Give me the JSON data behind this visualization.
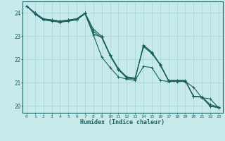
{
  "xlabel": "Humidex (Indice chaleur)",
  "background_color": "#c8eaea",
  "grid_color": "#a8d8d8",
  "line_color": "#1a6060",
  "spine_color": "#1a6060",
  "xlim": [
    -0.5,
    23.5
  ],
  "ylim": [
    19.7,
    24.5
  ],
  "yticks": [
    20,
    21,
    22,
    23,
    24
  ],
  "xticks": [
    0,
    1,
    2,
    3,
    4,
    5,
    6,
    7,
    8,
    9,
    10,
    11,
    12,
    13,
    14,
    15,
    16,
    17,
    18,
    19,
    20,
    21,
    22,
    23
  ],
  "series": [
    [
      24.3,
      24.0,
      23.75,
      23.7,
      23.65,
      23.7,
      23.75,
      24.0,
      23.3,
      23.0,
      22.2,
      21.6,
      21.25,
      21.2,
      22.55,
      22.25,
      21.8,
      21.1,
      21.1,
      21.1,
      20.4,
      20.4,
      20.05,
      19.95
    ],
    [
      24.3,
      24.0,
      23.72,
      23.67,
      23.62,
      23.67,
      23.72,
      23.97,
      23.1,
      22.95,
      22.15,
      21.55,
      21.2,
      21.15,
      22.62,
      22.32,
      21.78,
      21.08,
      21.08,
      21.08,
      20.4,
      20.37,
      19.98,
      19.92
    ],
    [
      24.3,
      23.95,
      23.7,
      23.65,
      23.6,
      23.65,
      23.7,
      23.97,
      23.05,
      22.1,
      21.65,
      21.25,
      21.15,
      21.1,
      21.7,
      21.65,
      21.1,
      21.05,
      21.05,
      21.05,
      20.8,
      20.35,
      20.3,
      19.92
    ],
    [
      24.3,
      24.0,
      23.75,
      23.7,
      23.65,
      23.7,
      23.75,
      24.0,
      23.2,
      22.95,
      22.18,
      21.57,
      21.22,
      21.18,
      22.58,
      22.28,
      21.75,
      21.08,
      21.08,
      21.08,
      20.42,
      20.38,
      20.0,
      19.93
    ]
  ]
}
